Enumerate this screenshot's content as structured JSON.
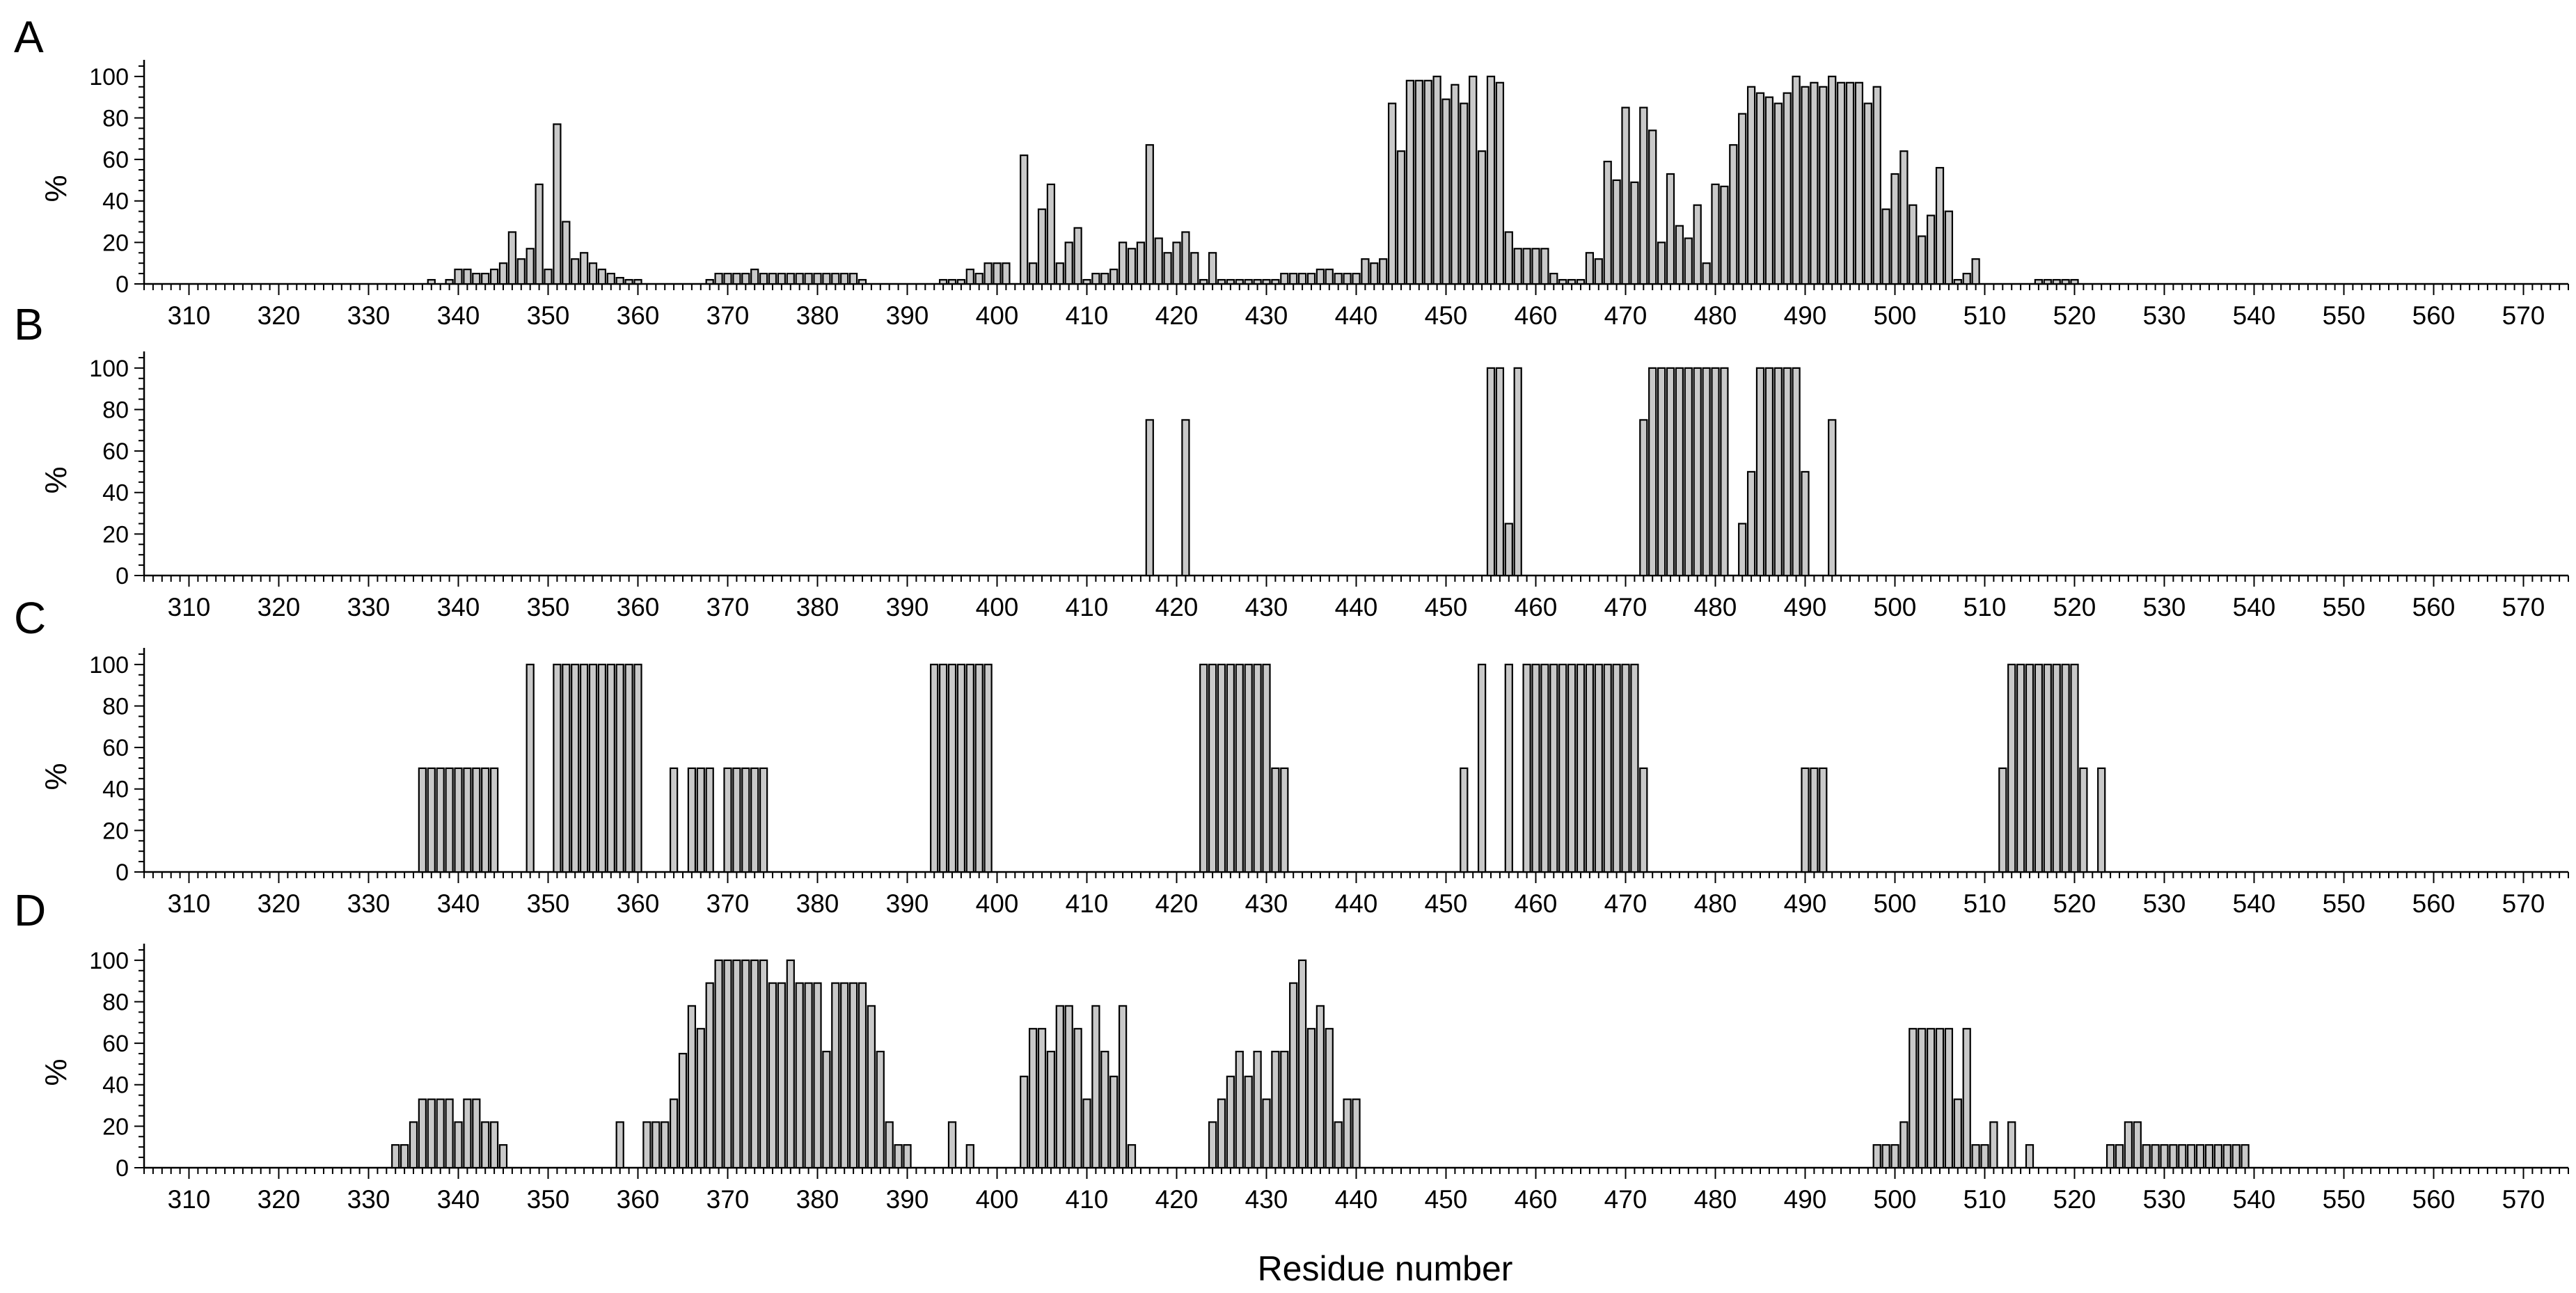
{
  "chart_data": [
    {
      "type": "bar",
      "panel": "A",
      "ylabel": "%",
      "x_ticks": [
        310,
        320,
        330,
        340,
        350,
        360,
        370,
        380,
        390,
        400,
        410,
        420,
        430,
        440,
        450,
        460,
        470,
        480,
        490,
        500,
        510,
        520,
        530,
        540,
        550,
        560,
        570
      ],
      "y_ticks": [
        0,
        20,
        40,
        60,
        80,
        100
      ],
      "xlim": [
        305,
        575
      ],
      "ylim": [
        0,
        108
      ],
      "x": [
        337,
        338,
        339,
        340,
        341,
        342,
        343,
        344,
        345,
        346,
        347,
        348,
        349,
        350,
        351,
        352,
        353,
        354,
        355,
        356,
        357,
        358,
        359,
        360,
        368,
        369,
        370,
        371,
        372,
        373,
        374,
        375,
        376,
        377,
        378,
        379,
        380,
        381,
        382,
        383,
        384,
        385,
        394,
        395,
        396,
        397,
        398,
        399,
        400,
        401,
        402,
        403,
        404,
        405,
        406,
        407,
        408,
        409,
        410,
        411,
        412,
        413,
        414,
        415,
        416,
        417,
        418,
        419,
        420,
        421,
        422,
        423,
        424,
        425,
        426,
        427,
        428,
        429,
        430,
        431,
        432,
        433,
        434,
        435,
        436,
        437,
        438,
        439,
        440,
        441,
        442,
        443,
        444,
        445,
        446,
        447,
        448,
        449,
        450,
        451,
        452,
        453,
        454,
        455,
        456,
        457,
        458,
        459,
        460,
        461,
        462,
        463,
        464,
        465,
        466,
        467,
        468,
        469,
        470,
        471,
        472,
        473,
        474,
        475,
        476,
        477,
        478,
        479,
        480,
        481,
        482,
        483,
        484,
        485,
        486,
        487,
        488,
        489,
        490,
        491,
        492,
        493,
        494,
        495,
        496,
        497,
        498,
        499,
        500,
        501,
        502,
        503,
        504,
        505,
        506,
        507,
        508,
        509,
        516,
        517,
        518,
        519,
        520
      ],
      "values": [
        2,
        0,
        2,
        7,
        7,
        5,
        5,
        7,
        10,
        25,
        12,
        17,
        48,
        7,
        77,
        30,
        12,
        15,
        10,
        7,
        5,
        3,
        2,
        2,
        2,
        5,
        5,
        5,
        5,
        7,
        5,
        5,
        5,
        5,
        5,
        5,
        5,
        5,
        5,
        5,
        5,
        2,
        2,
        2,
        2,
        7,
        5,
        10,
        10,
        10,
        0,
        62,
        10,
        36,
        48,
        10,
        20,
        27,
        2,
        5,
        5,
        7,
        20,
        17,
        20,
        67,
        22,
        15,
        20,
        25,
        15,
        2,
        15,
        2,
        2,
        2,
        2,
        2,
        2,
        2,
        5,
        5,
        5,
        5,
        7,
        7,
        5,
        5,
        5,
        12,
        10,
        12,
        87,
        64,
        98,
        98,
        98,
        100,
        89,
        96,
        87,
        100,
        64,
        100,
        97,
        25,
        17,
        17,
        17,
        17,
        5,
        2,
        2,
        2,
        15,
        12,
        59,
        50,
        85,
        49,
        85,
        74,
        20,
        53,
        28,
        22,
        38,
        10,
        48,
        47,
        67,
        82,
        95,
        92,
        90,
        87,
        92,
        100,
        95,
        97,
        95,
        100,
        97,
        97,
        97,
        87,
        95,
        36,
        53,
        64,
        38,
        23,
        33,
        56,
        35,
        2,
        5,
        12,
        2,
        2,
        2,
        2,
        2
      ]
    },
    {
      "type": "bar",
      "panel": "B",
      "ylabel": "%",
      "x_ticks": [
        310,
        320,
        330,
        340,
        350,
        360,
        370,
        380,
        390,
        400,
        410,
        420,
        430,
        440,
        450,
        460,
        470,
        480,
        490,
        500,
        510,
        520,
        530,
        540,
        550,
        560,
        570
      ],
      "y_ticks": [
        0,
        20,
        40,
        60,
        80,
        100
      ],
      "xlim": [
        305,
        575
      ],
      "ylim": [
        0,
        108
      ],
      "x": [
        417,
        421,
        455,
        456,
        457,
        458,
        472,
        473,
        474,
        475,
        476,
        477,
        478,
        479,
        480,
        481,
        483,
        484,
        485,
        486,
        487,
        488,
        489,
        490,
        493
      ],
      "values": [
        75,
        75,
        100,
        100,
        25,
        100,
        75,
        100,
        100,
        100,
        100,
        100,
        100,
        100,
        100,
        100,
        25,
        50,
        100,
        100,
        100,
        100,
        100,
        50,
        75
      ]
    },
    {
      "type": "bar",
      "panel": "C",
      "ylabel": "%",
      "x_ticks": [
        310,
        320,
        330,
        340,
        350,
        360,
        370,
        380,
        390,
        400,
        410,
        420,
        430,
        440,
        450,
        460,
        470,
        480,
        490,
        500,
        510,
        520,
        530,
        540,
        550,
        560,
        570
      ],
      "y_ticks": [
        0,
        20,
        40,
        60,
        80,
        100
      ],
      "xlim": [
        305,
        575
      ],
      "ylim": [
        0,
        108
      ],
      "x": [
        336,
        337,
        338,
        339,
        340,
        341,
        342,
        343,
        344,
        348,
        351,
        352,
        353,
        354,
        355,
        356,
        357,
        358,
        359,
        360,
        364,
        366,
        367,
        368,
        370,
        371,
        372,
        373,
        374,
        393,
        394,
        395,
        396,
        397,
        398,
        399,
        423,
        424,
        425,
        426,
        427,
        428,
        429,
        430,
        431,
        432,
        452,
        454,
        457,
        459,
        460,
        461,
        462,
        463,
        464,
        465,
        466,
        467,
        468,
        469,
        470,
        471,
        472,
        490,
        491,
        492,
        512,
        513,
        514,
        515,
        516,
        517,
        518,
        519,
        520,
        521,
        523
      ],
      "values": [
        50,
        50,
        50,
        50,
        50,
        50,
        50,
        50,
        50,
        100,
        100,
        100,
        100,
        100,
        100,
        100,
        100,
        100,
        100,
        100,
        50,
        50,
        50,
        50,
        50,
        50,
        50,
        50,
        50,
        100,
        100,
        100,
        100,
        100,
        100,
        100,
        100,
        100,
        100,
        100,
        100,
        100,
        100,
        100,
        50,
        50,
        50,
        100,
        100,
        100,
        100,
        100,
        100,
        100,
        100,
        100,
        100,
        100,
        100,
        100,
        100,
        100,
        50,
        50,
        50,
        50,
        50,
        100,
        100,
        100,
        100,
        100,
        100,
        100,
        100,
        50,
        50
      ]
    },
    {
      "type": "bar",
      "panel": "D",
      "ylabel": "%",
      "xlabel": "Residue number",
      "x_ticks": [
        310,
        320,
        330,
        340,
        350,
        360,
        370,
        380,
        390,
        400,
        410,
        420,
        430,
        440,
        450,
        460,
        470,
        480,
        490,
        500,
        510,
        520,
        530,
        540,
        550,
        560,
        570
      ],
      "y_ticks": [
        0,
        20,
        40,
        60,
        80,
        100
      ],
      "xlim": [
        305,
        575
      ],
      "ylim": [
        0,
        108
      ],
      "x": [
        333,
        334,
        335,
        336,
        337,
        338,
        339,
        340,
        341,
        342,
        343,
        344,
        345,
        358,
        361,
        362,
        363,
        364,
        365,
        366,
        367,
        368,
        369,
        370,
        371,
        372,
        373,
        374,
        375,
        376,
        377,
        378,
        379,
        380,
        381,
        382,
        383,
        384,
        385,
        386,
        387,
        388,
        389,
        390,
        395,
        397,
        403,
        404,
        405,
        406,
        407,
        408,
        409,
        410,
        411,
        412,
        413,
        414,
        415,
        424,
        425,
        426,
        427,
        428,
        429,
        430,
        431,
        432,
        433,
        434,
        435,
        436,
        437,
        438,
        439,
        440,
        498,
        499,
        500,
        501,
        502,
        503,
        504,
        505,
        506,
        507,
        508,
        509,
        510,
        511,
        513,
        515,
        524,
        525,
        526,
        527,
        528,
        529,
        530,
        531,
        532,
        533,
        534,
        535,
        536,
        537,
        538,
        539
      ],
      "values": [
        11,
        11,
        22,
        33,
        33,
        33,
        33,
        22,
        33,
        33,
        22,
        22,
        11,
        22,
        22,
        22,
        22,
        33,
        55,
        78,
        67,
        89,
        100,
        100,
        100,
        100,
        100,
        100,
        89,
        89,
        100,
        89,
        89,
        89,
        56,
        89,
        89,
        89,
        89,
        78,
        56,
        22,
        11,
        11,
        22,
        11,
        44,
        67,
        67,
        56,
        78,
        78,
        67,
        33,
        78,
        56,
        44,
        78,
        11,
        22,
        33,
        44,
        56,
        44,
        56,
        33,
        56,
        56,
        89,
        100,
        67,
        78,
        67,
        22,
        33,
        33,
        11,
        11,
        11,
        22,
        67,
        67,
        67,
        67,
        67,
        33,
        67,
        11,
        11,
        22,
        22,
        11,
        11,
        11,
        22,
        22,
        11,
        11,
        11,
        11,
        11,
        11,
        11,
        11,
        11,
        11,
        11,
        11
      ]
    }
  ]
}
